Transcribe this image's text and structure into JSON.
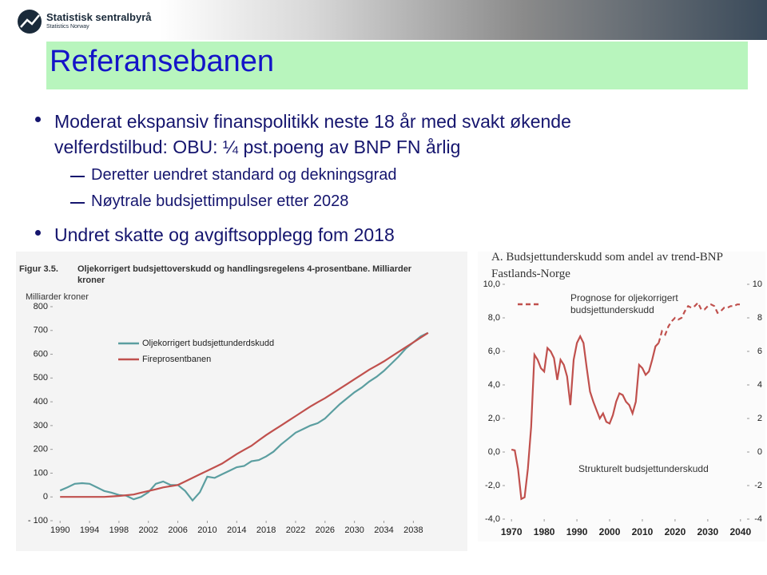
{
  "header": {
    "org": "Statistisk sentralbyrå",
    "org_en": "Statistics Norway"
  },
  "title": "Referansebanen",
  "bullets": [
    {
      "text": "Moderat ekspansiv finanspolitikk neste 18 år med svakt økende velferdstilbud: OBU: ¼ pst.poeng av BNP FN årlig",
      "subitems": [
        "Deretter uendret standard og dekningsgrad",
        "Nøytrale budsjettimpulser etter 2028"
      ]
    },
    {
      "text": "Undret skatte og avgiftsopplegg fom 2018",
      "subitems": []
    }
  ],
  "chart_data": [
    {
      "type": "line",
      "label": "Figur 3.5.",
      "title": "Oljekorrigert budsjettoverskudd og handlingsregelens 4-prosentbane. Milliarder kroner",
      "y_label": "Milliarder kroner",
      "x": [
        1990,
        1991,
        1992,
        1993,
        1994,
        1995,
        1996,
        1997,
        1998,
        1999,
        2000,
        2001,
        2002,
        2003,
        2004,
        2005,
        2006,
        2007,
        2008,
        2009,
        2010,
        2011,
        2012,
        2013,
        2014,
        2015,
        2016,
        2017,
        2018,
        2019,
        2020,
        2021,
        2022,
        2023,
        2024,
        2025,
        2026,
        2027,
        2028,
        2029,
        2030,
        2031,
        2032,
        2033,
        2034,
        2035,
        2036,
        2037,
        2038,
        2039,
        2040
      ],
      "series": [
        {
          "name": "Oljekorrigert budsjettunderdskudd",
          "color": "#5b9ea0",
          "values": [
            27,
            40,
            55,
            58,
            55,
            40,
            25,
            18,
            8,
            5,
            -10,
            0,
            20,
            55,
            65,
            50,
            50,
            25,
            -15,
            20,
            85,
            80,
            95,
            110,
            125,
            130,
            150,
            155,
            170,
            190,
            220,
            245,
            270,
            285,
            300,
            310,
            330,
            360,
            390,
            415,
            440,
            460,
            485,
            505,
            530,
            560,
            590,
            625,
            650,
            675,
            690
          ]
        },
        {
          "name": "Fireprosentbanen",
          "color": "#c0504d",
          "values": [
            0,
            0,
            0,
            0,
            0,
            0,
            0,
            2,
            4,
            7,
            10,
            18,
            25,
            32,
            40,
            45,
            50,
            65,
            80,
            95,
            110,
            125,
            140,
            160,
            180,
            198,
            215,
            238,
            260,
            280,
            300,
            320,
            340,
            360,
            380,
            398,
            415,
            435,
            455,
            475,
            495,
            515,
            535,
            552,
            570,
            590,
            610,
            630,
            650,
            670,
            690
          ]
        }
      ],
      "xlim": [
        1989,
        2041
      ],
      "xticks": [
        1990,
        1994,
        1998,
        2002,
        2006,
        2010,
        2014,
        2018,
        2022,
        2026,
        2030,
        2034,
        2038
      ],
      "ylim": [
        -100,
        800
      ],
      "yticks": [
        {
          "value": -100,
          "label": "- 100"
        },
        0,
        100,
        200,
        300,
        400,
        500,
        600,
        700,
        800
      ],
      "grid": false
    },
    {
      "type": "line",
      "title": "A. Budsjettunderskudd som andel av trend-BNP Fastlands-Norge",
      "x": [
        1970,
        1971,
        1972,
        1973,
        1974,
        1975,
        1976,
        1977,
        1978,
        1979,
        1980,
        1981,
        1982,
        1983,
        1984,
        1985,
        1986,
        1987,
        1988,
        1989,
        1990,
        1991,
        1992,
        1993,
        1994,
        1995,
        1996,
        1997,
        1998,
        1999,
        2000,
        2001,
        2002,
        2003,
        2004,
        2005,
        2006,
        2007,
        2008,
        2009,
        2010,
        2011,
        2012,
        2013,
        2014,
        2015,
        2016,
        2017,
        2018,
        2019,
        2020,
        2021,
        2022,
        2023,
        2024,
        2025,
        2026,
        2027,
        2028,
        2029,
        2030,
        2031,
        2032,
        2033,
        2034,
        2035,
        2036,
        2037,
        2038,
        2039,
        2040
      ],
      "series": [
        {
          "name": "Strukturelt budsjettunderskudd",
          "color": "#c0504d",
          "style": "solid",
          "values": [
            0.15,
            0.1,
            -1,
            -2.8,
            -2.7,
            -1,
            1.5,
            5.8,
            5.5,
            5,
            4.8,
            6.2,
            6,
            5.6,
            4.3,
            5.5,
            5.2,
            4.5,
            2.8,
            5.5,
            6.5,
            6.9,
            6.5,
            5,
            3.6,
            3,
            2.5,
            2,
            2.3,
            1.8,
            1.7,
            2.2,
            3,
            3.5,
            3.4,
            3,
            2.8,
            2.3,
            3,
            5.2,
            5,
            4.6,
            4.8,
            5.5,
            6.3,
            6.5,
            null,
            null,
            null,
            null,
            null,
            null,
            null,
            null,
            null,
            null,
            null,
            null,
            null,
            null,
            null,
            null,
            null,
            null,
            null,
            null,
            null,
            null,
            null,
            null,
            null
          ]
        },
        {
          "name": "Prognose for oljekorrigert budsjettunderskudd",
          "color": "#c0504d",
          "style": "dashed",
          "values": [
            null,
            null,
            null,
            null,
            null,
            null,
            null,
            null,
            null,
            null,
            null,
            null,
            null,
            null,
            null,
            null,
            null,
            null,
            null,
            null,
            null,
            null,
            null,
            null,
            null,
            null,
            null,
            null,
            null,
            null,
            null,
            null,
            null,
            null,
            null,
            null,
            null,
            null,
            null,
            null,
            null,
            null,
            null,
            null,
            null,
            6.5,
            7.2,
            7,
            7.5,
            7.8,
            8,
            7.9,
            8,
            8.4,
            8.7,
            8.6,
            8.7,
            8.9,
            8.5,
            8.5,
            8.7,
            8.8,
            8.7,
            8.3,
            8.4,
            8.6,
            8.6,
            8.7,
            8.7,
            8.8,
            8.8
          ]
        }
      ],
      "xlim": [
        1968,
        2042
      ],
      "xticks": [
        1970,
        1980,
        1990,
        2000,
        2010,
        2020,
        2030,
        2040
      ],
      "ylim": [
        -4,
        10
      ],
      "yticks": [
        {
          "value": 10,
          "label": "10,0"
        },
        {
          "value": 8,
          "label": "8,0"
        },
        {
          "value": 6,
          "label": "6,0"
        },
        {
          "value": 4,
          "label": "4,0"
        },
        {
          "value": 2,
          "label": "2,0"
        },
        {
          "value": 0,
          "label": "0,0"
        },
        {
          "value": -2,
          "label": "-2,0"
        },
        {
          "value": -4,
          "label": "-4,0"
        }
      ],
      "y2lim": [
        -4,
        10
      ],
      "y2ticks": [
        10,
        8,
        6,
        4,
        2,
        0,
        -2,
        -4
      ],
      "grid": false
    }
  ]
}
